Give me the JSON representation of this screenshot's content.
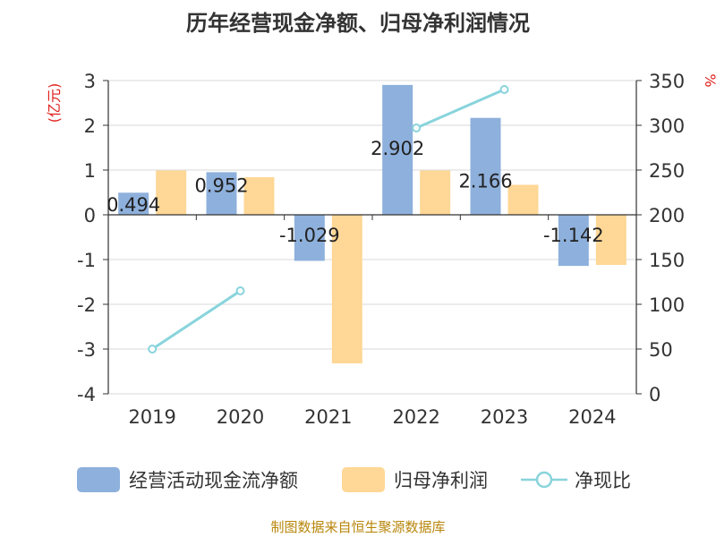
{
  "title": "历年经营现金净额、归母净利润情况",
  "footer": "制图数据来自恒生聚源数据库",
  "legend": {
    "bar1": "经营活动现金流净额",
    "bar2": "归母净利润",
    "line": "净现比"
  },
  "colors": {
    "bar1": "#8eb0dc",
    "bar2": "#ffd796",
    "line": "#88d4dc",
    "axis_label_red": "#e0201b",
    "footer": "#b8860b"
  },
  "chart_data": {
    "type": "bar",
    "categories": [
      "2019",
      "2020",
      "2021",
      "2022",
      "2023",
      "2024"
    ],
    "series": [
      {
        "name": "经营活动现金流净额",
        "type": "bar",
        "axis": "left",
        "values": [
          0.494,
          0.952,
          -1.029,
          2.902,
          2.166,
          -1.142
        ],
        "labels": [
          "0.494",
          "0.952",
          "-1.029",
          "2.902",
          "2.166",
          "-1.142"
        ]
      },
      {
        "name": "归母净利润",
        "type": "bar",
        "axis": "left",
        "values": [
          0.99,
          0.84,
          -3.32,
          0.99,
          0.67,
          -1.12
        ]
      },
      {
        "name": "净现比",
        "type": "line",
        "axis": "right",
        "values": [
          50,
          115,
          null,
          297,
          340,
          null
        ]
      }
    ],
    "y_left": {
      "label": "(亿元)",
      "min": -4,
      "max": 3,
      "ticks": [
        "3",
        "2",
        "1",
        "0",
        "-1",
        "-2",
        "-3",
        "-4"
      ]
    },
    "y_right": {
      "label": "%",
      "min": 0,
      "max": 350,
      "ticks": [
        "350",
        "300",
        "250",
        "200",
        "150",
        "100",
        "50",
        "0"
      ]
    },
    "grid": true,
    "legend_position": "bottom"
  }
}
